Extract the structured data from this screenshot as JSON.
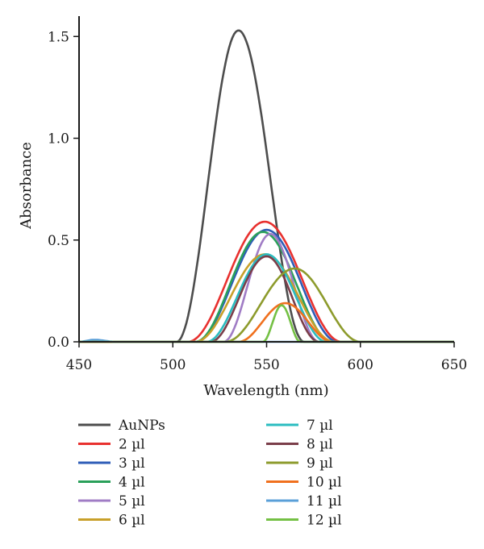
{
  "chart_data": {
    "type": "line",
    "title": "",
    "xlabel": "Wavelength (nm)",
    "ylabel": "Absorbance",
    "xlim": [
      450,
      650
    ],
    "ylim": [
      0,
      1.6
    ],
    "x_ticks": [
      450,
      500,
      550,
      600,
      650
    ],
    "x_tick_labels": [
      "450",
      "500",
      "550",
      "600",
      "650"
    ],
    "y_ticks": [
      0,
      0.5,
      1.0,
      1.5
    ],
    "y_tick_labels": [
      "0.0",
      "0.5",
      "1.0",
      "1.5"
    ],
    "grid": false,
    "legend_position": "bottom, two columns",
    "series": [
      {
        "name": "AuNPs",
        "color": "#4d4d4d",
        "peak_x": 535,
        "peak_y": 1.53,
        "x_start": 502,
        "x_end": 570
      },
      {
        "name": "2 µl",
        "color": "#e8312f",
        "peak_x": 549,
        "peak_y": 0.59,
        "x_start": 508,
        "x_end": 590
      },
      {
        "name": "3 µl",
        "color": "#2e5db7",
        "peak_x": 550,
        "peak_y": 0.55,
        "x_start": 512,
        "x_end": 588
      },
      {
        "name": "4 µl",
        "color": "#2aa05a",
        "peak_x": 548,
        "peak_y": 0.54,
        "x_start": 512,
        "x_end": 585
      },
      {
        "name": "5 µl",
        "color": "#a07cc5",
        "peak_x": 552,
        "peak_y": 0.53,
        "x_start": 527,
        "x_end": 578
      },
      {
        "name": "6 µl",
        "color": "#c8a02a",
        "peak_x": 549,
        "peak_y": 0.43,
        "x_start": 512,
        "x_end": 586
      },
      {
        "name": "7 µl",
        "color": "#2bbcc0",
        "peak_x": 550,
        "peak_y": 0.43,
        "x_start": 518,
        "x_end": 582
      },
      {
        "name": "8 µl",
        "color": "#7b3e4a",
        "peak_x": 550,
        "peak_y": 0.42,
        "x_start": 520,
        "x_end": 578
      },
      {
        "name": "9 µl",
        "color": "#8d9b2c",
        "peak_x": 565,
        "peak_y": 0.36,
        "x_start": 528,
        "x_end": 600
      },
      {
        "name": "10 µl",
        "color": "#f0701e",
        "peak_x": 560,
        "peak_y": 0.19,
        "x_start": 535,
        "x_end": 585
      },
      {
        "name": "11 µl",
        "color": "#5a9fd8",
        "peak_x": 458,
        "peak_y": 0.01,
        "x_start": 450,
        "x_end": 470
      },
      {
        "name": "12 µl",
        "color": "#74c044",
        "peak_x": 558,
        "peak_y": 0.18,
        "x_start": 548,
        "x_end": 568
      }
    ]
  }
}
